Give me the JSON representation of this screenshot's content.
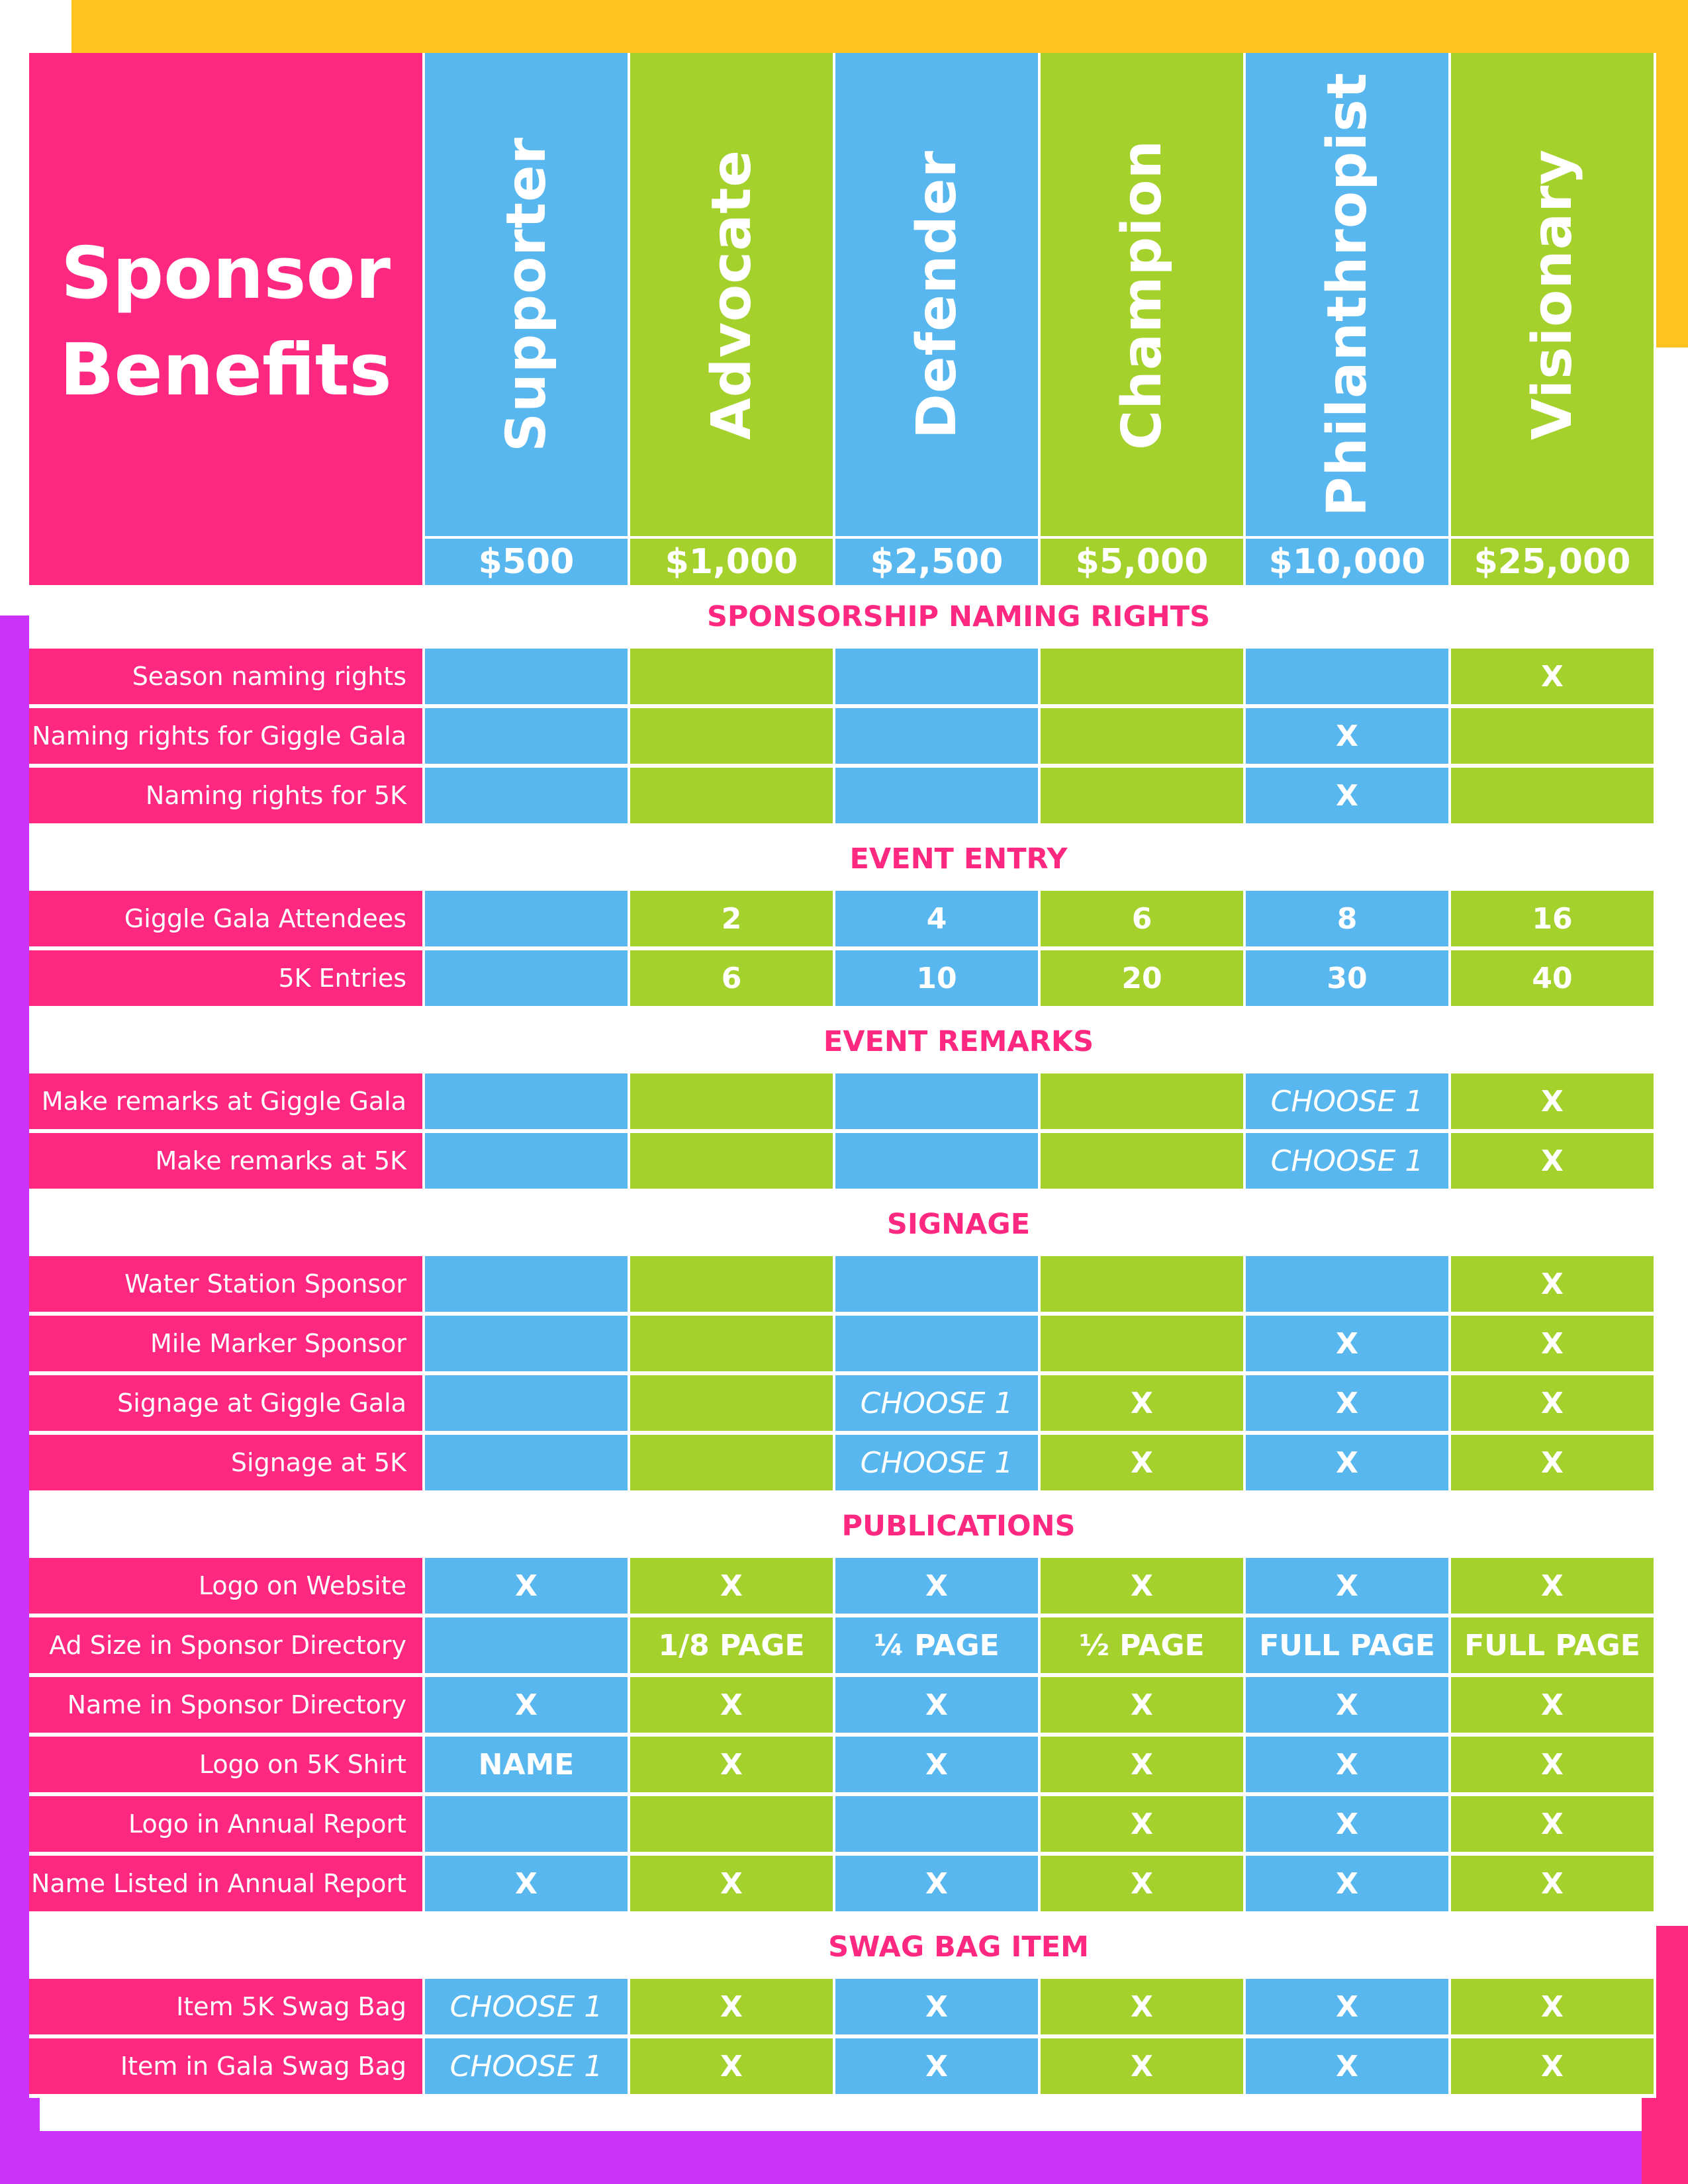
{
  "colors": {
    "pink": "#fe2881",
    "blue": "#58b7ef",
    "green": "#a4d12b",
    "yellow": "#ffc21e",
    "purple": "#cb33fa"
  },
  "title_line1": "Sponsor",
  "title_line2": "Benefits",
  "tiers": [
    {
      "name": "Supporter",
      "price": "$500"
    },
    {
      "name": "Advocate",
      "price": "$1,000"
    },
    {
      "name": "Defender",
      "price": "$2,500"
    },
    {
      "name": "Champion",
      "price": "$5,000"
    },
    {
      "name": "Philanthropist",
      "price": "$10,000"
    },
    {
      "name": "Visionary",
      "price": "$25,000"
    }
  ],
  "sections": [
    {
      "title": "SPONSORSHIP NAMING RIGHTS",
      "rows": [
        {
          "label": "Season naming rights",
          "values": [
            "",
            "",
            "",
            "",
            "",
            "X"
          ]
        },
        {
          "label": "Naming rights for Giggle Gala",
          "values": [
            "",
            "",
            "",
            "",
            "X",
            ""
          ]
        },
        {
          "label": "Naming rights for 5K",
          "values": [
            "",
            "",
            "",
            "",
            "X",
            ""
          ]
        }
      ]
    },
    {
      "title": "EVENT ENTRY",
      "rows": [
        {
          "label": "Giggle Gala Attendees",
          "values": [
            "",
            "2",
            "4",
            "6",
            "8",
            "16"
          ]
        },
        {
          "label": "5K Entries",
          "values": [
            "",
            "6",
            "10",
            "20",
            "30",
            "40"
          ]
        }
      ]
    },
    {
      "title": "EVENT REMARKS",
      "rows": [
        {
          "label": "Make remarks at Giggle Gala",
          "values": [
            "",
            "",
            "",
            "",
            "CHOOSE 1",
            "X"
          ]
        },
        {
          "label": "Make remarks at 5K",
          "values": [
            "",
            "",
            "",
            "",
            "CHOOSE 1",
            "X"
          ]
        }
      ]
    },
    {
      "title": "SIGNAGE",
      "rows": [
        {
          "label": "Water Station Sponsor",
          "values": [
            "",
            "",
            "",
            "",
            "",
            "X"
          ]
        },
        {
          "label": "Mile Marker Sponsor",
          "values": [
            "",
            "",
            "",
            "",
            "X",
            "X"
          ]
        },
        {
          "label": "Signage at Giggle Gala",
          "values": [
            "",
            "",
            "CHOOSE 1",
            "X",
            "X",
            "X"
          ]
        },
        {
          "label": "Signage at 5K",
          "values": [
            "",
            "",
            "CHOOSE 1",
            "X",
            "X",
            "X"
          ]
        }
      ]
    },
    {
      "title": "PUBLICATIONS",
      "rows": [
        {
          "label": "Logo on Website",
          "values": [
            "X",
            "X",
            "X",
            "X",
            "X",
            "X"
          ]
        },
        {
          "label": "Ad Size in Sponsor Directory",
          "values": [
            "",
            "1/8 PAGE",
            "¼ PAGE",
            "½ PAGE",
            "FULL PAGE",
            "FULL PAGE"
          ]
        },
        {
          "label": "Name in Sponsor Directory",
          "values": [
            "X",
            "X",
            "X",
            "X",
            "X",
            "X"
          ]
        },
        {
          "label": "Logo on 5K Shirt",
          "values": [
            "NAME",
            "X",
            "X",
            "X",
            "X",
            "X"
          ]
        },
        {
          "label": "Logo in Annual Report",
          "values": [
            "",
            "",
            "",
            "X",
            "X",
            "X"
          ]
        },
        {
          "label": "Name Listed in Annual Report",
          "values": [
            "X",
            "X",
            "X",
            "X",
            "X",
            "X"
          ]
        }
      ]
    },
    {
      "title": "SWAG BAG ITEM",
      "rows": [
        {
          "label": "Item 5K Swag Bag",
          "values": [
            "CHOOSE 1",
            "X",
            "X",
            "X",
            "X",
            "X"
          ]
        },
        {
          "label": "Item in Gala Swag Bag",
          "values": [
            "CHOOSE 1",
            "X",
            "X",
            "X",
            "X",
            "X"
          ]
        }
      ]
    }
  ]
}
